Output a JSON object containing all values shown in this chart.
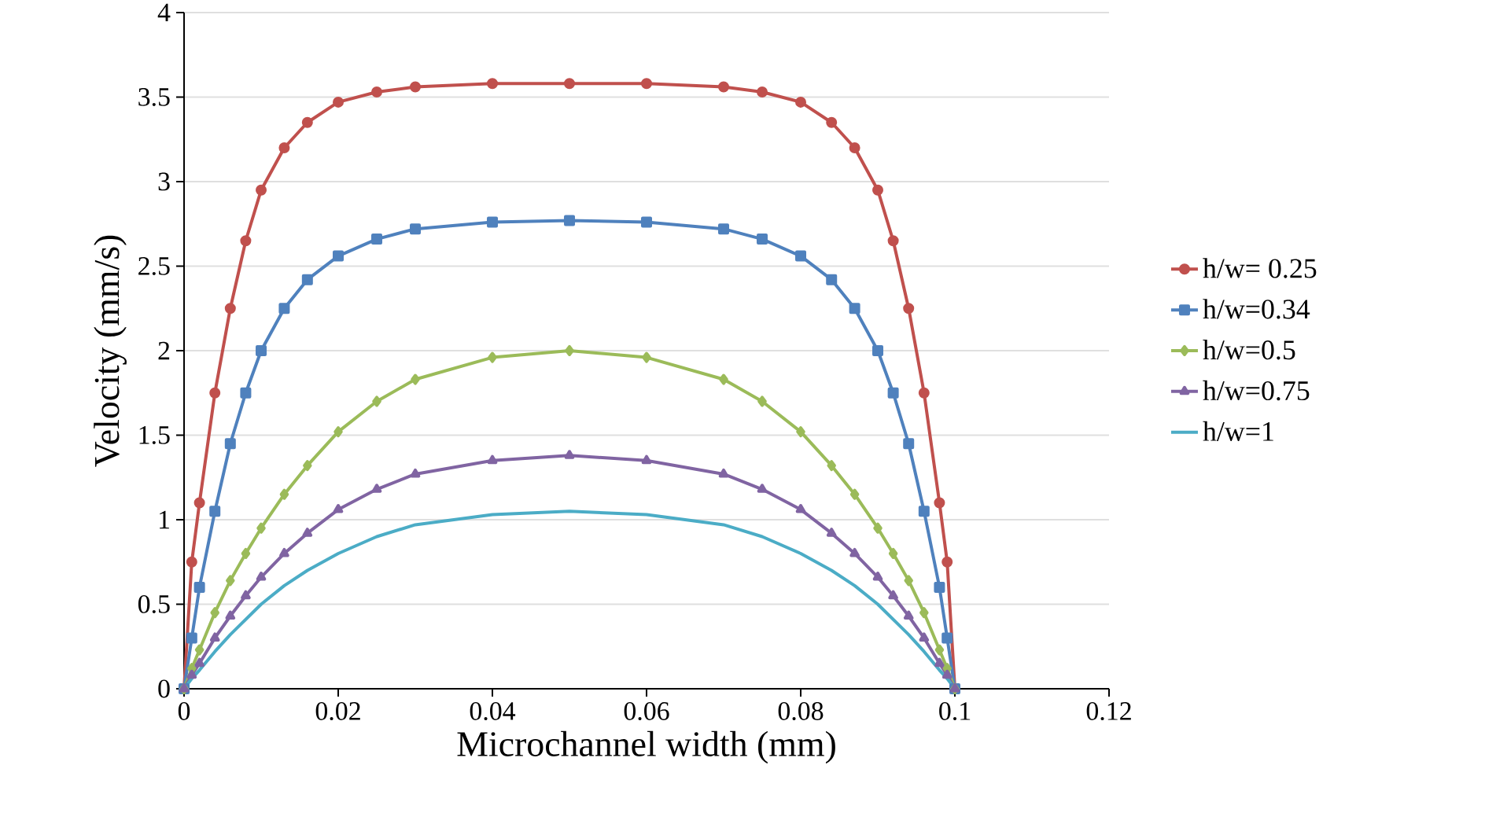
{
  "chart_data": {
    "type": "line",
    "xlabel": "Microchannel width (mm)",
    "ylabel": "Velocity (mm/s)",
    "x": [
      0,
      0.001,
      0.002,
      0.004,
      0.006,
      0.008,
      0.01,
      0.013,
      0.016,
      0.02,
      0.025,
      0.03,
      0.04,
      0.05,
      0.06,
      0.07,
      0.075,
      0.08,
      0.084,
      0.087,
      0.09,
      0.092,
      0.094,
      0.096,
      0.098,
      0.099,
      0.1
    ],
    "series": [
      {
        "name": "h/w= 0.25",
        "color": "#c0504d",
        "marker": "circle",
        "values": [
          0,
          0.75,
          1.1,
          1.75,
          2.25,
          2.65,
          2.95,
          3.2,
          3.35,
          3.47,
          3.53,
          3.56,
          3.58,
          3.58,
          3.58,
          3.56,
          3.53,
          3.47,
          3.35,
          3.2,
          2.95,
          2.65,
          2.25,
          1.75,
          1.1,
          0.75,
          0
        ]
      },
      {
        "name": "h/w=0.34",
        "color": "#4f81bd",
        "marker": "square",
        "values": [
          0,
          0.3,
          0.6,
          1.05,
          1.45,
          1.75,
          2.0,
          2.25,
          2.42,
          2.56,
          2.66,
          2.72,
          2.76,
          2.77,
          2.76,
          2.72,
          2.66,
          2.56,
          2.42,
          2.25,
          2.0,
          1.75,
          1.45,
          1.05,
          0.6,
          0.3,
          0
        ]
      },
      {
        "name": "h/w=0.5",
        "color": "#9bbb59",
        "marker": "diamond",
        "values": [
          0,
          0.12,
          0.23,
          0.45,
          0.64,
          0.8,
          0.95,
          1.15,
          1.32,
          1.52,
          1.7,
          1.83,
          1.96,
          2.0,
          1.96,
          1.83,
          1.7,
          1.52,
          1.32,
          1.15,
          0.95,
          0.8,
          0.64,
          0.45,
          0.23,
          0.12,
          0
        ]
      },
      {
        "name": "h/w=0.75",
        "color": "#8064a2",
        "marker": "triangle",
        "values": [
          0,
          0.08,
          0.15,
          0.3,
          0.43,
          0.55,
          0.66,
          0.8,
          0.92,
          1.06,
          1.18,
          1.27,
          1.35,
          1.38,
          1.35,
          1.27,
          1.18,
          1.06,
          0.92,
          0.8,
          0.66,
          0.55,
          0.43,
          0.3,
          0.15,
          0.08,
          0
        ]
      },
      {
        "name": "h/w=1",
        "color": "#4bacc6",
        "marker": "none",
        "values": [
          0,
          0.06,
          0.11,
          0.22,
          0.32,
          0.41,
          0.5,
          0.61,
          0.7,
          0.8,
          0.9,
          0.97,
          1.03,
          1.05,
          1.03,
          0.97,
          0.9,
          0.8,
          0.7,
          0.61,
          0.5,
          0.41,
          0.32,
          0.22,
          0.11,
          0.06,
          0
        ]
      }
    ],
    "xlim": [
      0,
      0.12
    ],
    "xticks": [
      0,
      0.02,
      0.04,
      0.06,
      0.08,
      0.1,
      0.12
    ],
    "ylim": [
      0,
      4
    ],
    "yticks": [
      0,
      0.5,
      1,
      1.5,
      2,
      2.5,
      3,
      3.5,
      4
    ],
    "grid": "y",
    "legend": "right",
    "line_style": "solid"
  }
}
